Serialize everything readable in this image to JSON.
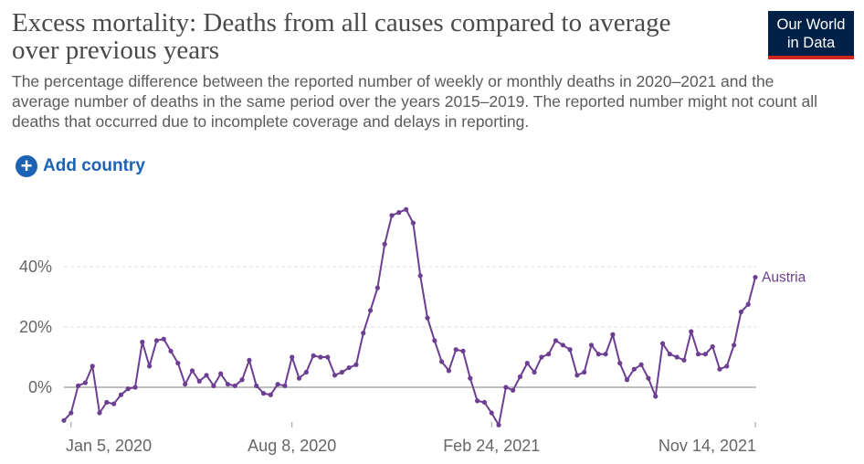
{
  "header": {
    "title": "Excess mortality: Deaths from all causes compared to average over previous years",
    "subtitle": "The percentage difference between the reported number of weekly or monthly deaths in 2020–2021 and the average number of deaths in the same period over the years 2015–2019. The reported number might not count all deaths that occurred due to incomplete coverage and delays in reporting."
  },
  "logo": {
    "line1": "Our World",
    "line2": "in Data"
  },
  "controls": {
    "add_country_label": "Add country",
    "add_icon": "plus-circle-icon"
  },
  "colors": {
    "series": "#6d3e91",
    "logo_bg": "#002147",
    "logo_accent": "#ce261e",
    "link": "#1d63b5"
  },
  "chart_data": {
    "type": "line",
    "title": "Excess mortality: Deaths from all causes compared to average over previous years",
    "xlabel": "",
    "ylabel": "",
    "x_tick_labels": [
      "Jan 5, 2020",
      "Aug 8, 2020",
      "Feb 24, 2021",
      "Nov 14, 2021"
    ],
    "y_tick_labels": [
      "0%",
      "20%",
      "40%"
    ],
    "y_ticks": [
      0,
      20,
      40
    ],
    "ylim": [
      -13,
      62
    ],
    "grid": "horizontal dashed",
    "legend": "inline label at end of line",
    "series": [
      {
        "name": "Austria",
        "color": "#6d3e91",
        "values": [
          -11,
          -8.5,
          0.5,
          1.5,
          7,
          -8.5,
          -5,
          -5.5,
          -2.5,
          -0.5,
          0,
          15,
          7,
          15.5,
          16,
          12,
          8,
          1,
          5.5,
          2,
          4,
          0.5,
          4.5,
          1,
          0.5,
          2.5,
          9,
          0.5,
          -2,
          -2.5,
          1,
          0.5,
          10,
          3,
          5,
          10.5,
          10,
          10,
          4,
          5,
          6.5,
          7.5,
          18,
          25.5,
          33,
          47.5,
          57,
          58,
          59,
          54.5,
          37,
          23,
          15.5,
          8.5,
          5.5,
          12.5,
          12,
          3,
          -4.5,
          -5,
          -8.5,
          -12.5,
          0,
          -1,
          3.5,
          8,
          5,
          10,
          11,
          15.5,
          14,
          12.5,
          4,
          5,
          14,
          11,
          11,
          17.5,
          8,
          2.5,
          6,
          7.5,
          3,
          -3,
          14.5,
          11,
          10,
          9,
          18.5,
          11,
          11,
          13.5,
          6,
          7,
          14,
          25,
          27.5,
          36.5
        ]
      }
    ]
  }
}
